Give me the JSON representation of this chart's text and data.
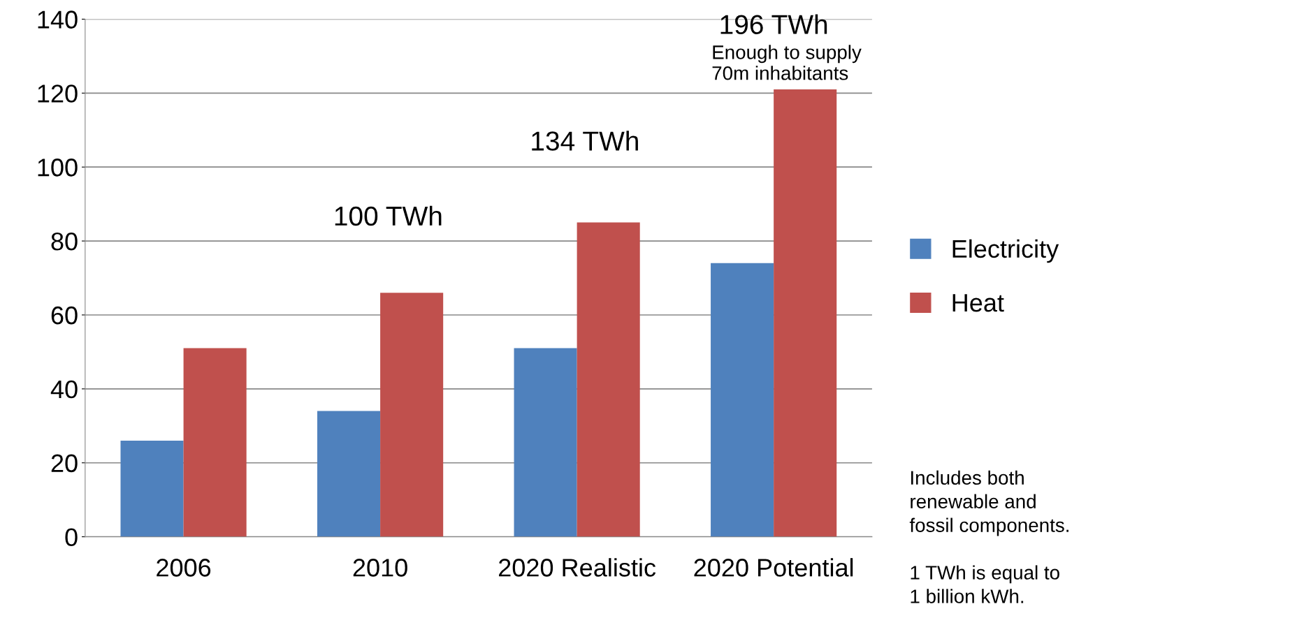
{
  "chart_data": {
    "type": "bar",
    "categories": [
      "2006",
      "2010",
      "2020 Realistic",
      "2020 Potential"
    ],
    "series": [
      {
        "name": "Electricity",
        "color": "#4f81bd",
        "values": [
          26,
          34,
          51,
          74
        ]
      },
      {
        "name": "Heat",
        "color": "#c0504d",
        "values": [
          51,
          66,
          85,
          121
        ]
      }
    ],
    "ylim": [
      0,
      140
    ],
    "yticks": [
      0,
      20,
      40,
      60,
      80,
      100,
      120,
      140
    ],
    "grid": "y",
    "legend": "right",
    "annotations": [
      "100 TWh",
      "134 TWh",
      "196 TWh",
      "Enough to supply\n70m inhabitants",
      "Includes both\nrenewable and\nfossil components.\n\n1 TWh is equal to\n1 billion kWh."
    ]
  }
}
